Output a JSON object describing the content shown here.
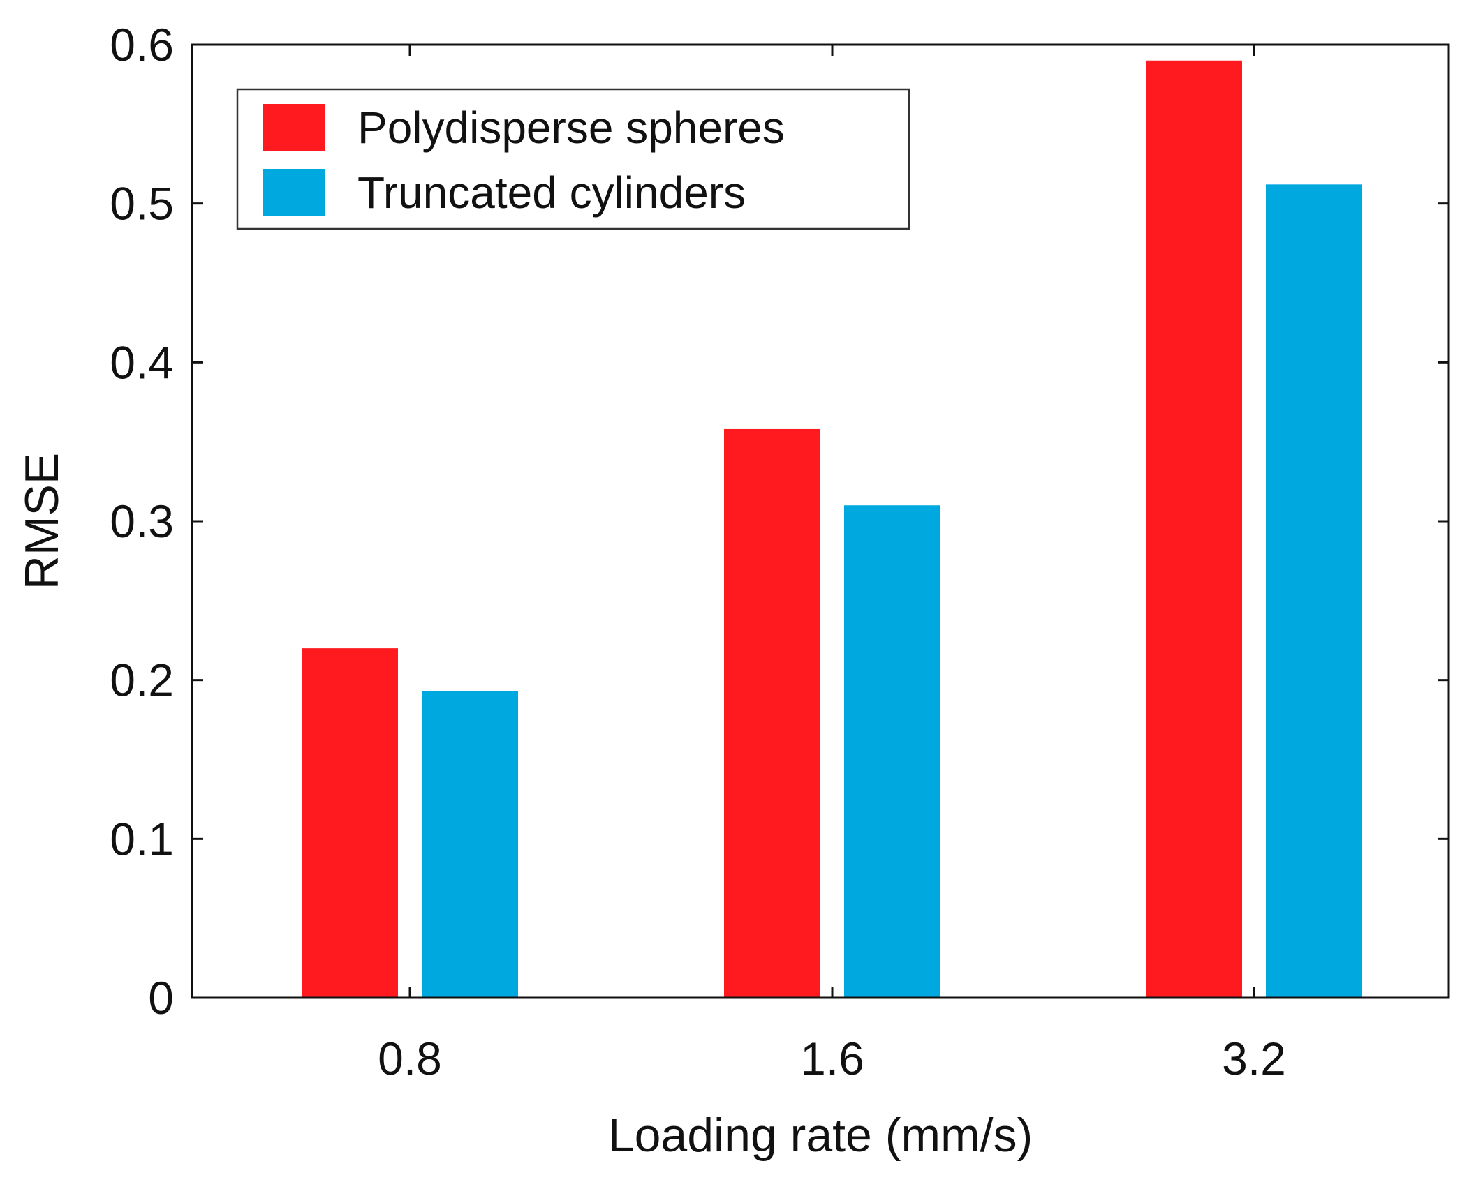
{
  "chart_data": {
    "type": "bar",
    "title": "",
    "xlabel": "Loading rate (mm/s)",
    "ylabel": "RMSE",
    "categories": [
      "0.8",
      "1.6",
      "3.2"
    ],
    "series": [
      {
        "name": "Polydisperse spheres",
        "color": "#ff1a1f",
        "values": [
          0.22,
          0.358,
          0.59
        ]
      },
      {
        "name": "Truncated cylinders",
        "color": "#00a8e0",
        "values": [
          0.193,
          0.31,
          0.512
        ]
      }
    ],
    "ylim": [
      0,
      0.6
    ],
    "yticks": [
      0,
      0.1,
      0.2,
      0.3,
      0.4,
      0.5,
      0.6
    ],
    "ytick_labels": [
      "0",
      "0.1",
      "0.2",
      "0.3",
      "0.4",
      "0.5",
      "0.6"
    ],
    "grid": false,
    "legend_position": "top-left"
  }
}
